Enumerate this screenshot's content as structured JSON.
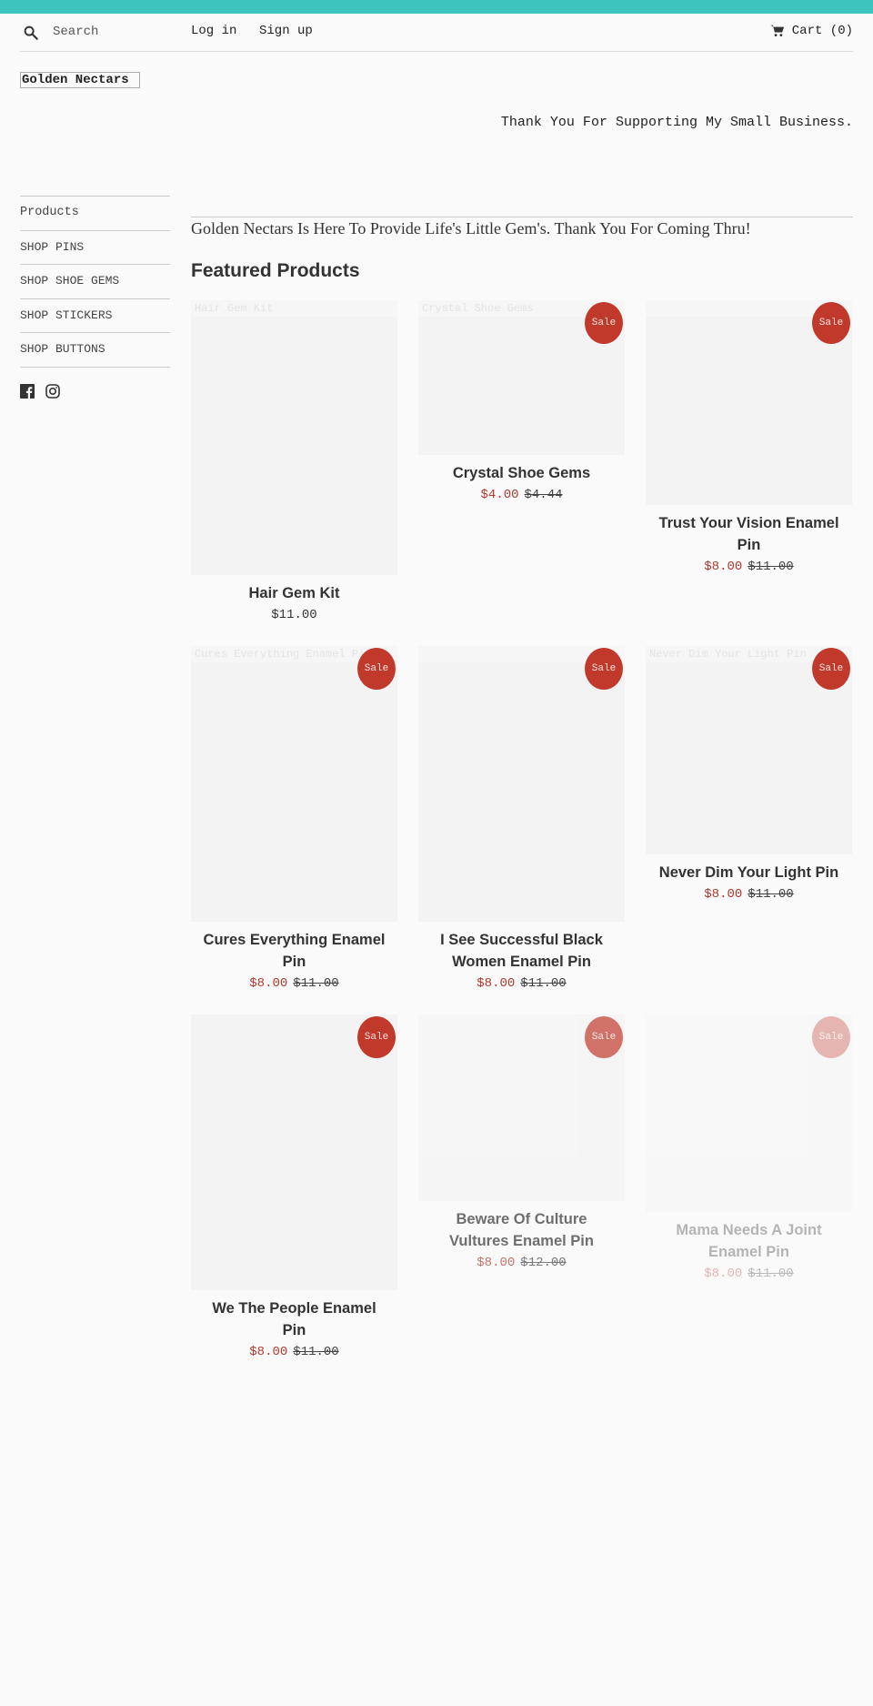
{
  "colors": {
    "accent_bar": "#3ec4bf",
    "sale": "#c0392b",
    "background": "#fafafa"
  },
  "header": {
    "search": {
      "placeholder": "Search",
      "icon": "search-icon"
    },
    "login_label": "Log in",
    "signup_label": "Sign up",
    "cart_label": "Cart (0)",
    "cart_icon": "cart-icon"
  },
  "logo_text": "Golden Nectars",
  "tagline": "Thank You For Supporting My Small Business.",
  "sidebar": {
    "items": [
      {
        "label": "Products"
      },
      {
        "label": "SHOP PINS"
      },
      {
        "label": "SHOP SHOE GEMS"
      },
      {
        "label": "SHOP STICKERS"
      },
      {
        "label": "SHOP BUTTONS"
      }
    ],
    "social": [
      "facebook-icon",
      "instagram-icon"
    ]
  },
  "intro_text": "Golden Nectars Is Here To Provide Life's Little Gem's. Thank You For Coming Thru!",
  "featured_heading": "Featured Products",
  "sale_label": "Sale",
  "products": [
    {
      "title": "Hair Gem Kit",
      "price": "$11.00",
      "on_sale": false,
      "ghost": "Hair Gem Kit"
    },
    {
      "title": "Crystal Shoe Gems",
      "price": "$4.00",
      "compare": "$4.44",
      "on_sale": true,
      "ghost": "Crystal Shoe Gems"
    },
    {
      "title": "Trust Your Vision Enamel Pin",
      "price": "$8.00",
      "compare": "$11.00",
      "on_sale": true
    },
    {
      "title": "Cures Everything Enamel Pin",
      "price": "$8.00",
      "compare": "$11.00",
      "on_sale": true,
      "ghost": "Cures Everything Enamel Pin"
    },
    {
      "title": "I See Successful Black Women Enamel Pin",
      "price": "$8.00",
      "compare": "$11.00",
      "on_sale": true
    },
    {
      "title": "Never Dim Your Light Pin",
      "price": "$8.00",
      "compare": "$11.00",
      "on_sale": true,
      "ghost": "Never Dim Your Light Pin"
    },
    {
      "title": "We The People Enamel Pin",
      "price": "$8.00",
      "compare": "$11.00",
      "on_sale": true
    },
    {
      "title": "Beware Of Culture Vultures Enamel Pin",
      "price": "$8.00",
      "compare": "$12.00",
      "on_sale": true
    },
    {
      "title": "Mama Needs A Joint Enamel Pin",
      "price": "$8.00",
      "compare": "$11.00",
      "on_sale": true
    }
  ]
}
